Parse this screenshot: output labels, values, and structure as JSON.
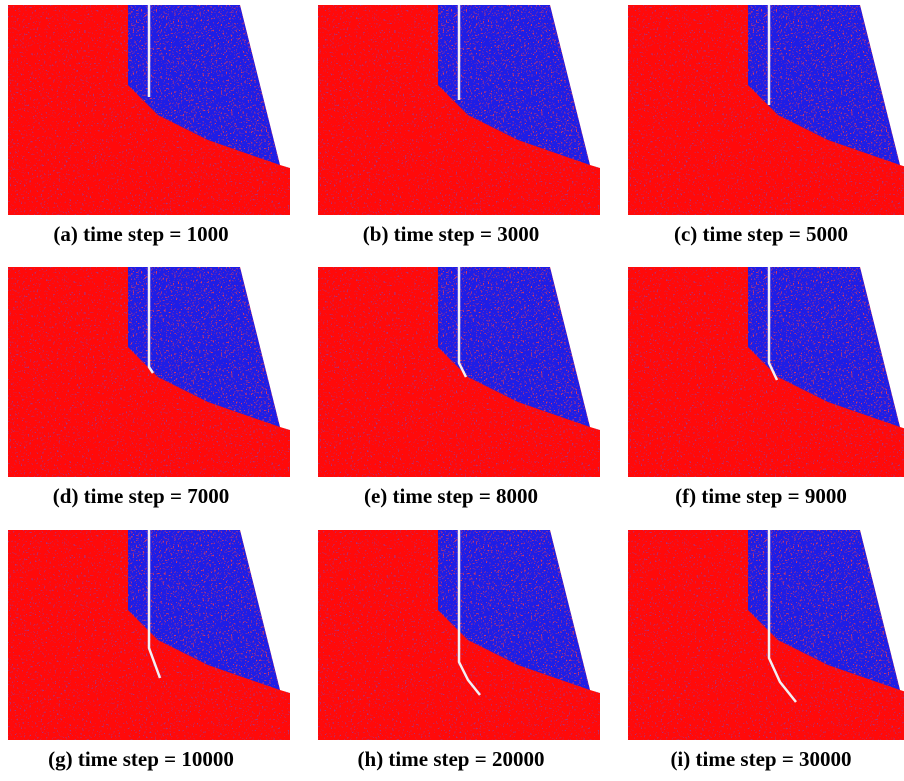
{
  "panels": [
    {
      "caption": "(a) time step = 1000"
    },
    {
      "caption": "(b) time step = 3000"
    },
    {
      "caption": "(c) time step = 5000"
    },
    {
      "caption": "(d) time step = 7000"
    },
    {
      "caption": "(e) time step = 8000"
    },
    {
      "caption": "(f) time step = 9000"
    },
    {
      "caption": "(g) time step = 10000"
    },
    {
      "caption": "(h) time step = 20000"
    },
    {
      "caption": "(i) time step = 30000"
    }
  ]
}
